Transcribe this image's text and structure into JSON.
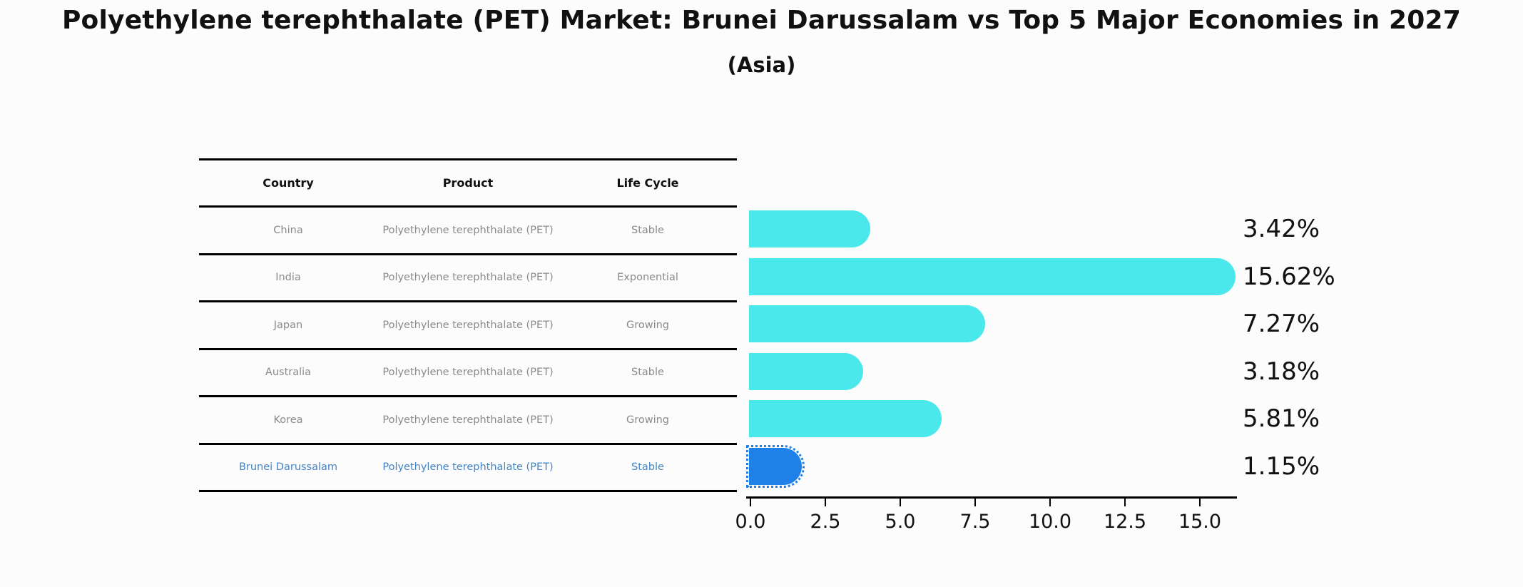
{
  "title": "Polyethylene terephthalate (PET) Market: Brunei Darussalam vs Top 5 Major Economies in 2027",
  "subtitle": "(Asia)",
  "table": {
    "columns": [
      "Country",
      "Product",
      "Life Cycle"
    ]
  },
  "chart_data": {
    "type": "bar",
    "orientation": "horizontal",
    "title": "Polyethylene terephthalate (PET) Market: Brunei Darussalam vs Top 5 Major Economies in 2027 (Asia)",
    "xlabel": "",
    "ylabel": "",
    "xlim": [
      0,
      16.3
    ],
    "grid": false,
    "legend": false,
    "xtick_labels": [
      "0.0",
      "2.5",
      "5.0",
      "7.5",
      "10.0",
      "12.5",
      "15.0"
    ],
    "xtick_values": [
      0,
      2.5,
      5,
      7.5,
      10,
      12.5,
      15
    ],
    "rows": [
      {
        "country": "China",
        "product": "Polyethylene terephthalate (PET)",
        "life_cycle": "Stable",
        "value": 3.42,
        "value_label": "3.42%",
        "highlight": false
      },
      {
        "country": "India",
        "product": "Polyethylene terephthalate (PET)",
        "life_cycle": "Exponential",
        "value": 15.62,
        "value_label": "15.62%",
        "highlight": false
      },
      {
        "country": "Japan",
        "product": "Polyethylene terephthalate (PET)",
        "life_cycle": "Growing",
        "value": 7.27,
        "value_label": "7.27%",
        "highlight": false
      },
      {
        "country": "Australia",
        "product": "Polyethylene terephthalate (PET)",
        "life_cycle": "Stable",
        "value": 3.18,
        "value_label": "3.18%",
        "highlight": false
      },
      {
        "country": "Korea",
        "product": "Polyethylene terephthalate (PET)",
        "life_cycle": "Growing",
        "value": 5.81,
        "value_label": "5.81%",
        "highlight": false
      },
      {
        "country": "Brunei Darussalam",
        "product": "Polyethylene terephthalate (PET)",
        "life_cycle": "Stable",
        "value": 1.15,
        "value_label": "1.15%",
        "highlight": true
      }
    ],
    "colors": {
      "bar": "#4ae8eb",
      "highlight_bar": "#1f80e8",
      "highlight_text": "#4383c4",
      "row_text": "#8a8a8a",
      "text": "#111111",
      "background": "#fcfcfc"
    }
  }
}
